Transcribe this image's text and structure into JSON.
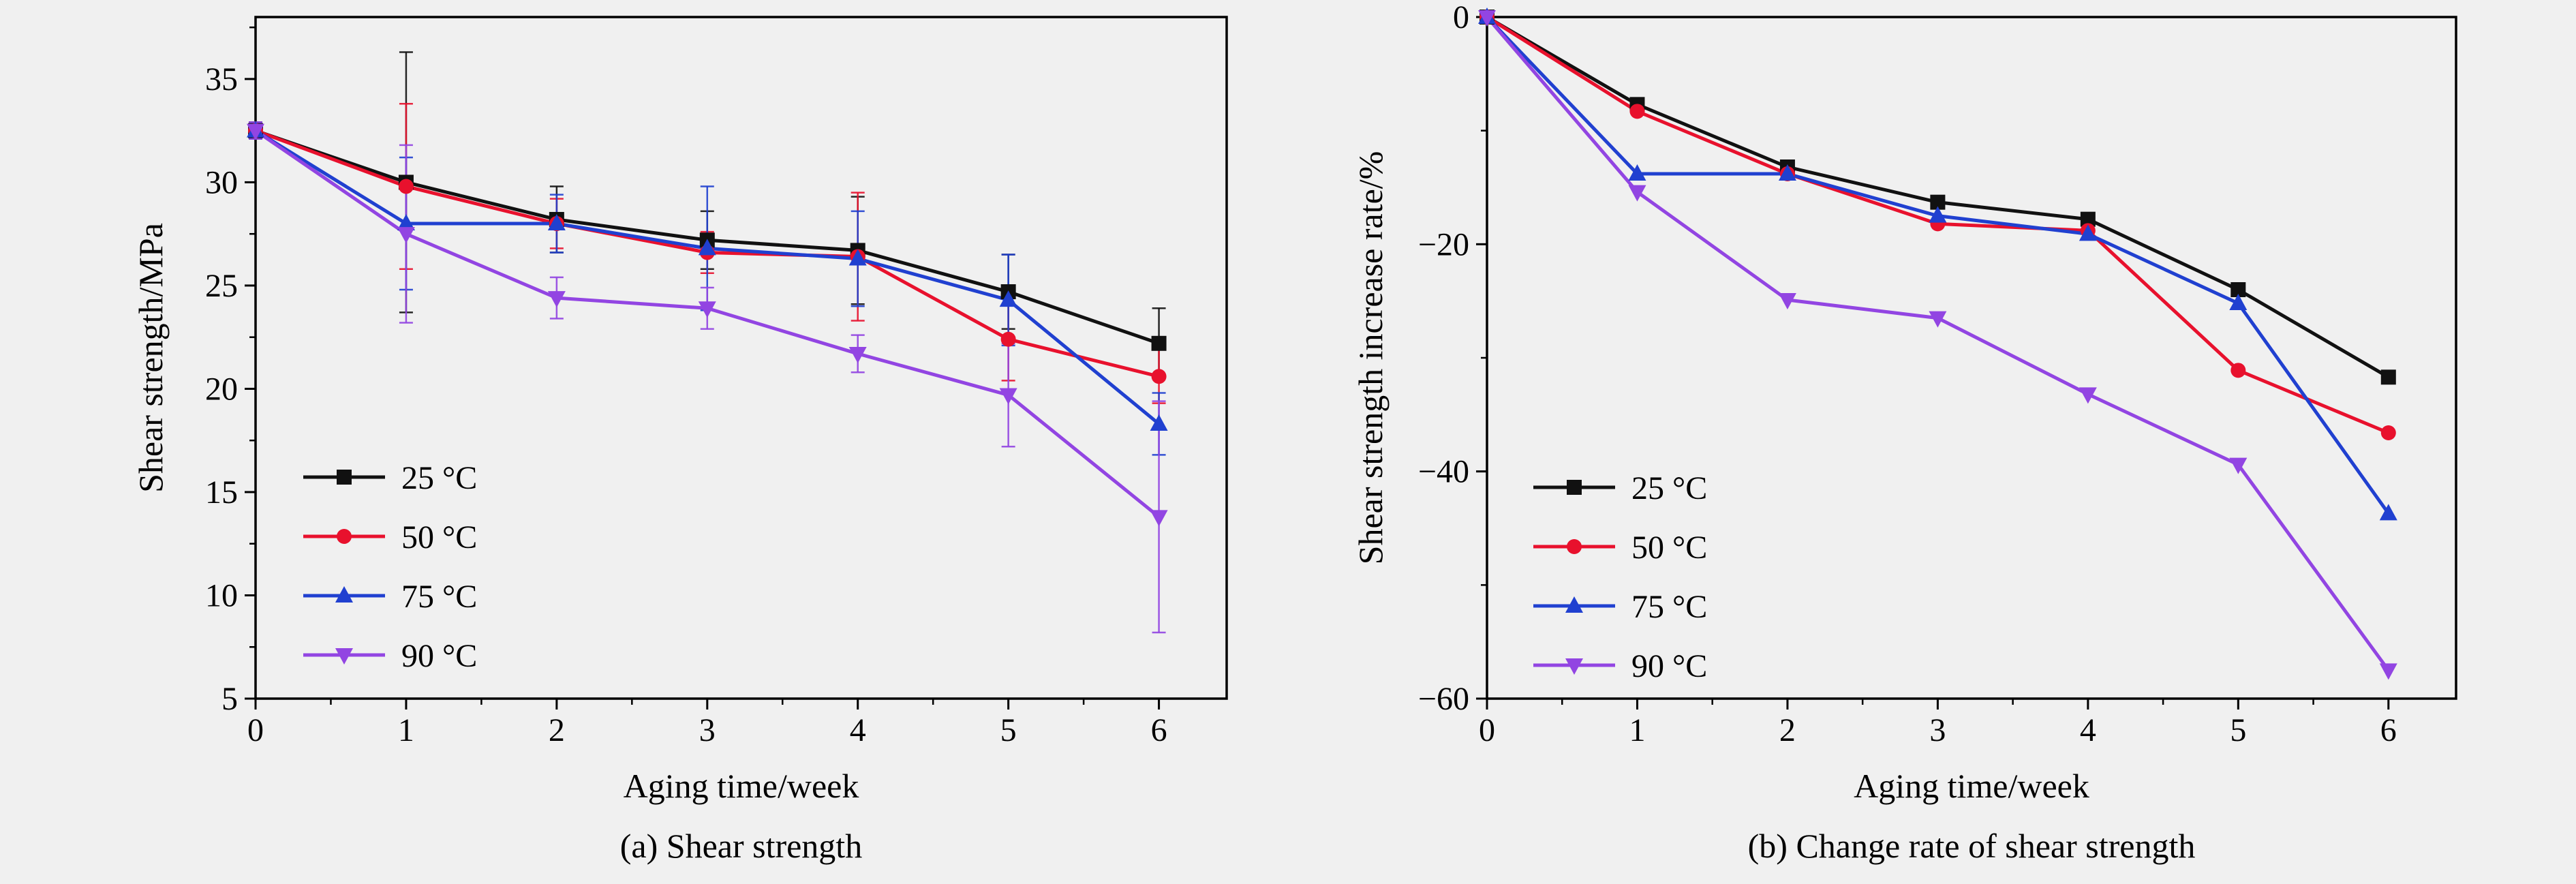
{
  "page": {
    "background_color": "#f0f0f0",
    "text_color": "#000000",
    "frame_color": "#000000"
  },
  "chart_data": [
    {
      "id": "a",
      "type": "line",
      "caption": "(a) Shear strength",
      "xlabel": "Aging time/week",
      "ylabel": "Shear strength/MPa",
      "xlim": [
        0,
        6.45
      ],
      "ylim": [
        5,
        38
      ],
      "xticks": [
        0,
        1,
        2,
        3,
        4,
        5,
        6
      ],
      "yticks": [
        5,
        10,
        15,
        20,
        25,
        30,
        35
      ],
      "xtick_minor_step": 0.5,
      "ytick_minor_step": 2.5,
      "grid": false,
      "legend_position": "inside bottom-left",
      "error_bars": true,
      "x": [
        0,
        1,
        2,
        3,
        4,
        5,
        6
      ],
      "series": [
        {
          "name": "25 °C",
          "color": "#111111",
          "marker": "square",
          "values": [
            32.5,
            30.0,
            28.2,
            27.2,
            26.7,
            24.7,
            22.2
          ],
          "errors": [
            0.4,
            6.3,
            1.6,
            1.4,
            2.6,
            1.8,
            1.7
          ]
        },
        {
          "name": "50 °C",
          "color": "#e8112d",
          "marker": "circle",
          "values": [
            32.5,
            29.8,
            28.0,
            26.6,
            26.4,
            22.4,
            20.6
          ],
          "errors": [
            0.4,
            4.0,
            1.2,
            1.0,
            3.1,
            2.0,
            1.3
          ]
        },
        {
          "name": "75 °C",
          "color": "#2040d0",
          "marker": "triangle-up",
          "values": [
            32.5,
            28.0,
            28.0,
            26.8,
            26.3,
            24.3,
            18.3
          ],
          "errors": [
            0.4,
            3.2,
            1.4,
            3.0,
            2.3,
            2.2,
            1.5
          ]
        },
        {
          "name": "90 °C",
          "color": "#9245e2",
          "marker": "triangle-down",
          "values": [
            32.5,
            27.5,
            24.4,
            23.9,
            21.7,
            19.7,
            13.8
          ],
          "errors": [
            0.4,
            4.3,
            1.0,
            1.0,
            0.9,
            2.5,
            5.6
          ]
        }
      ]
    },
    {
      "id": "b",
      "type": "line",
      "caption": "(b) Change rate of shear strength",
      "xlabel": "Aging time/week",
      "ylabel": "Shear strength increase rate/%",
      "xlim": [
        0,
        6.45
      ],
      "ylim": [
        -60,
        0
      ],
      "xticks": [
        0,
        1,
        2,
        3,
        4,
        5,
        6
      ],
      "yticks": [
        -60,
        -40,
        -20,
        0
      ],
      "xtick_minor_step": 0.5,
      "ytick_minor_step": 10,
      "grid": false,
      "legend_position": "inside bottom-left",
      "error_bars": false,
      "x": [
        0,
        1,
        2,
        3,
        4,
        5,
        6
      ],
      "series": [
        {
          "name": "25 °C",
          "color": "#111111",
          "marker": "square",
          "values": [
            0,
            -7.7,
            -13.2,
            -16.3,
            -17.8,
            -24.0,
            -31.7
          ]
        },
        {
          "name": "50 °C",
          "color": "#e8112d",
          "marker": "circle",
          "values": [
            0,
            -8.3,
            -13.8,
            -18.2,
            -18.8,
            -31.1,
            -36.6
          ]
        },
        {
          "name": "75 °C",
          "color": "#2040d0",
          "marker": "triangle-up",
          "values": [
            0,
            -13.8,
            -13.8,
            -17.5,
            -19.1,
            -25.2,
            -43.7
          ]
        },
        {
          "name": "90 °C",
          "color": "#9245e2",
          "marker": "triangle-down",
          "values": [
            0,
            -15.4,
            -24.9,
            -26.5,
            -33.2,
            -39.4,
            -57.5
          ]
        }
      ]
    }
  ]
}
